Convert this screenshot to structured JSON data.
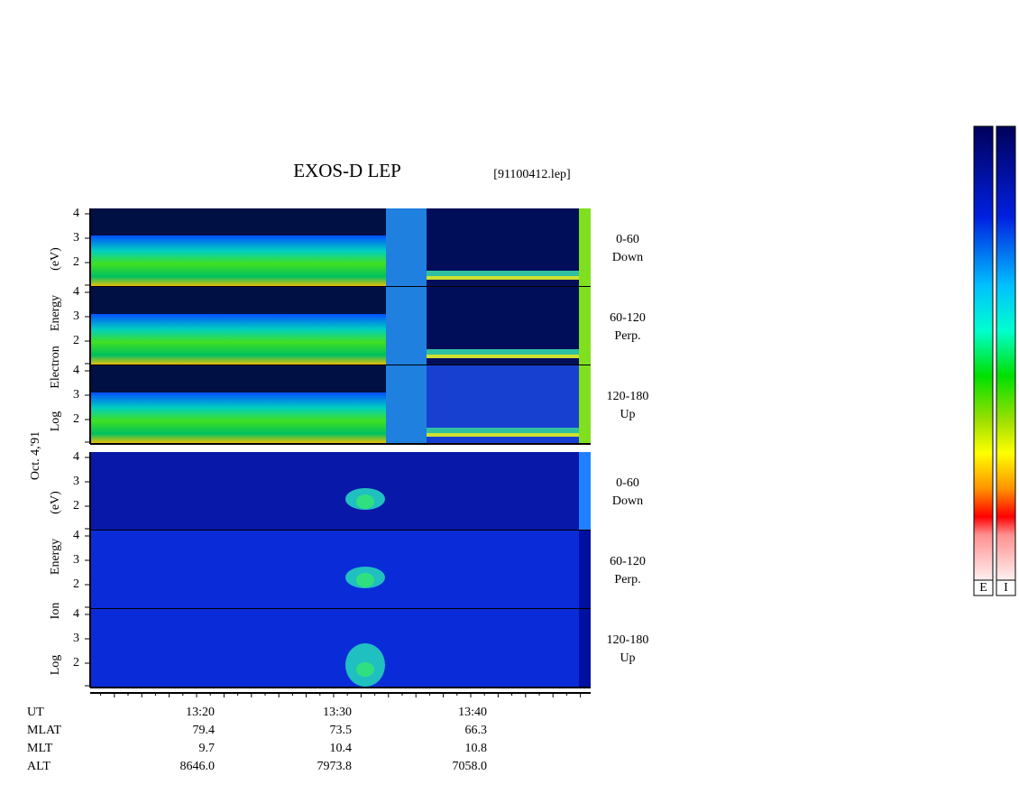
{
  "header": {
    "title": "EXOS-D LEP",
    "file": "[91100412.lep]"
  },
  "date": "Oct. 4,'91",
  "electron": {
    "axis_label": [
      "Log",
      "Electron",
      "Energy",
      "(eV)"
    ],
    "panels": [
      {
        "angle": "0-60",
        "direction": "Down"
      },
      {
        "angle": "60-120",
        "direction": "Perp."
      },
      {
        "angle": "120-180",
        "direction": "Up"
      }
    ]
  },
  "ion": {
    "axis_label": [
      "Log",
      "Ion",
      "Energy",
      "(eV)"
    ],
    "panels": [
      {
        "angle": "0-60",
        "direction": "Down"
      },
      {
        "angle": "60-120",
        "direction": "Perp."
      },
      {
        "angle": "120-180",
        "direction": "Up"
      }
    ]
  },
  "energy_ticks": [
    "4",
    "3",
    "2"
  ],
  "ephemeris": {
    "labels": [
      "UT",
      "MLAT",
      "MLT",
      "ALT"
    ],
    "columns": [
      [
        "13:20",
        "79.4",
        "9.7",
        "8646.0"
      ],
      [
        "13:30",
        "73.5",
        "10.4",
        "7973.8"
      ],
      [
        "13:40",
        "66.3",
        "10.8",
        "7058.0"
      ]
    ]
  },
  "colorbars": [
    "E",
    "I"
  ]
}
